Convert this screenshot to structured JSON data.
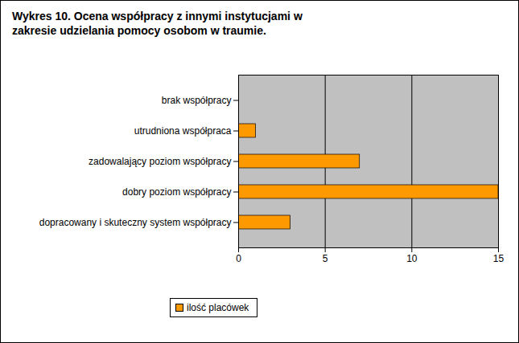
{
  "chart_data": {
    "type": "bar",
    "title": "Wykres 10. Ocena współpracy z innymi instytucjami w zakresie udzielania pomocy osobom w traumie.",
    "orientation": "horizontal",
    "categories": [
      "brak współpracy",
      "utrudniona współpraca",
      "zadowalający poziom współpracy",
      "dobry poziom współpracy",
      "dopracowany i skuteczny system współpracy"
    ],
    "series": [
      {
        "name": "ilość placówek",
        "color": "#ff9900",
        "values": [
          0,
          1,
          7,
          15,
          3
        ]
      }
    ],
    "xlim": [
      0,
      15
    ],
    "xticks": [
      0,
      5,
      10,
      15
    ],
    "grid": true,
    "legend": "bottom"
  }
}
